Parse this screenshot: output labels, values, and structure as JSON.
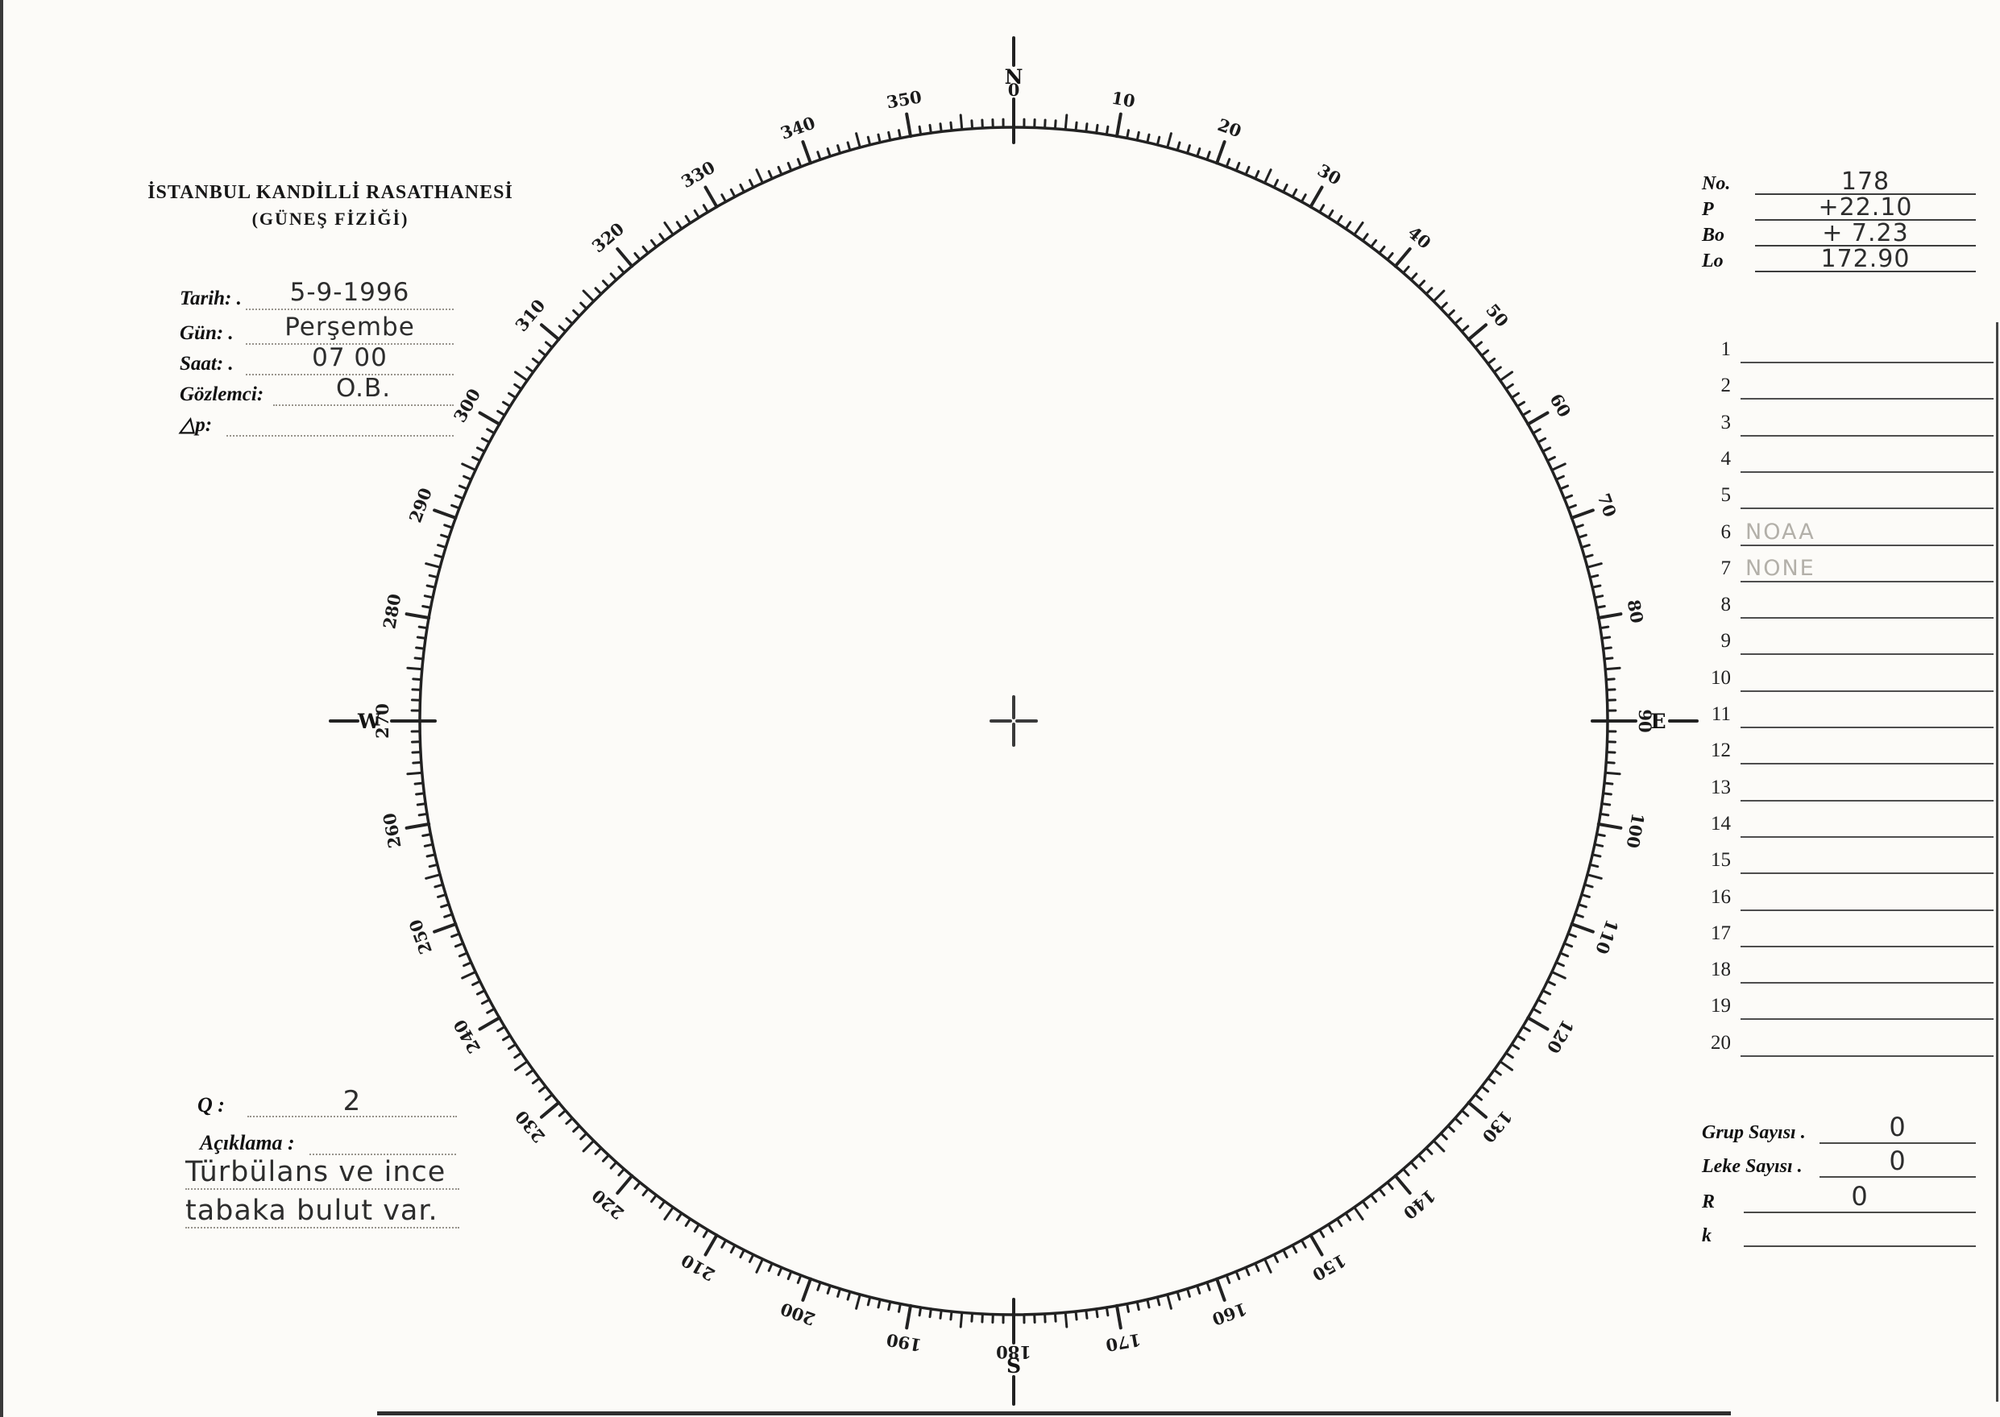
{
  "header": {
    "line1": "İSTANBUL KANDİLLİ RASATHANESİ",
    "line2": "(GÜNEŞ FİZİĞİ)"
  },
  "form": {
    "fields": [
      {
        "label": "Tarih: .",
        "value": "5-9-1996"
      },
      {
        "label": "Gün: .",
        "value": "Perşembe"
      },
      {
        "label": "Saat: .",
        "value": "07 00"
      },
      {
        "label": "Gözlemci:",
        "value": "O.B."
      },
      {
        "label": "△p:",
        "value": ""
      }
    ]
  },
  "params": {
    "rows": [
      {
        "label": "No.",
        "value": "178"
      },
      {
        "label": "P",
        "value": "+22.10"
      },
      {
        "label": "Bo",
        "value": "+ 7.23"
      },
      {
        "label": "Lo",
        "value": "172.90"
      }
    ]
  },
  "observation_list": {
    "count": 20,
    "notes": {
      "6": "NOAA",
      "7": "NONE"
    }
  },
  "summary": {
    "rows": [
      {
        "label": "Grup Sayısı .",
        "value": "0"
      },
      {
        "label": "Leke Sayısı .",
        "value": "0"
      },
      {
        "label": "R",
        "value": "0"
      },
      {
        "label": "k",
        "value": ""
      }
    ]
  },
  "quality": {
    "q_label": "Q :",
    "q_value": "2",
    "remark_label": "Açıklama :",
    "remark_lines": [
      "Türbülans ve ince",
      "tabaka bulut var."
    ]
  },
  "dial": {
    "degree_labels": [
      "0",
      "10",
      "20",
      "30",
      "40",
      "50",
      "60",
      "70",
      "80",
      "90",
      "100",
      "110",
      "120",
      "130",
      "140",
      "150",
      "160",
      "170",
      "180",
      "190",
      "200",
      "210",
      "220",
      "230",
      "240",
      "250",
      "260",
      "270",
      "280",
      "290",
      "300",
      "310",
      "320",
      "330",
      "340",
      "350"
    ],
    "cardinals": [
      {
        "deg": 0,
        "letter": "N"
      },
      {
        "deg": 90,
        "letter": "E"
      },
      {
        "deg": 180,
        "letter": "S"
      },
      {
        "deg": 270,
        "letter": "W"
      }
    ]
  },
  "colors": {
    "paper": "#fcfbf8",
    "ink": "#1c1c1c",
    "handwriting": "#2d2d2d",
    "pencil_note": "#b3b0a9"
  }
}
